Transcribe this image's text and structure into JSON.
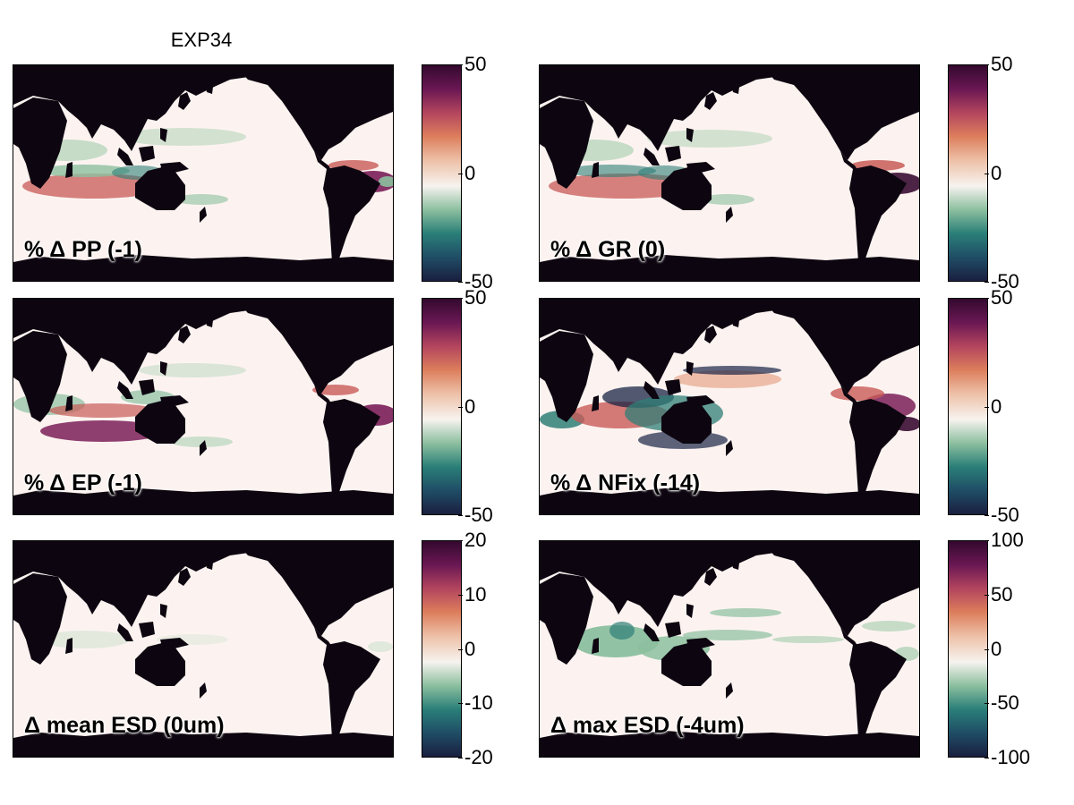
{
  "figure": {
    "title": "EXP34"
  },
  "colors": {
    "land": "#0d0610",
    "ocean": "#fcf3f0",
    "cmap": [
      "#1a1f3f",
      "#1f4d66",
      "#2a7f78",
      "#8cbf9f",
      "#f7f3ef",
      "#edc0a7",
      "#dc7e5c",
      "#b3455e",
      "#6a1753",
      "#33092e"
    ]
  },
  "panels": [
    {
      "id": "pp",
      "label": "% Δ PP (-1)",
      "ticks": [
        "50",
        "0",
        "-50"
      ],
      "pattern": "pp",
      "scale_max": 50
    },
    {
      "id": "gr",
      "label": "% Δ GR (0)",
      "ticks": [
        "50",
        "0",
        "-50"
      ],
      "pattern": "gr",
      "scale_max": 50
    },
    {
      "id": "ep",
      "label": "% Δ EP (-1)",
      "ticks": [
        "50",
        "0",
        "-50"
      ],
      "pattern": "ep",
      "scale_max": 50
    },
    {
      "id": "nfix",
      "label": "% Δ NFix (-14)",
      "ticks": [
        "50",
        "0",
        "-50"
      ],
      "pattern": "nfix",
      "scale_max": 50
    },
    {
      "id": "mesd",
      "label": "Δ mean ESD (0um)",
      "ticks": [
        "20",
        "10",
        "0",
        "-10",
        "-20"
      ],
      "pattern": "mesd",
      "scale_max": 20
    },
    {
      "id": "xesd",
      "label": "Δ max ESD (-4um)",
      "ticks": [
        "100",
        "50",
        "0",
        "-50",
        "-100"
      ],
      "pattern": "xesd",
      "scale_max": 100
    }
  ]
}
